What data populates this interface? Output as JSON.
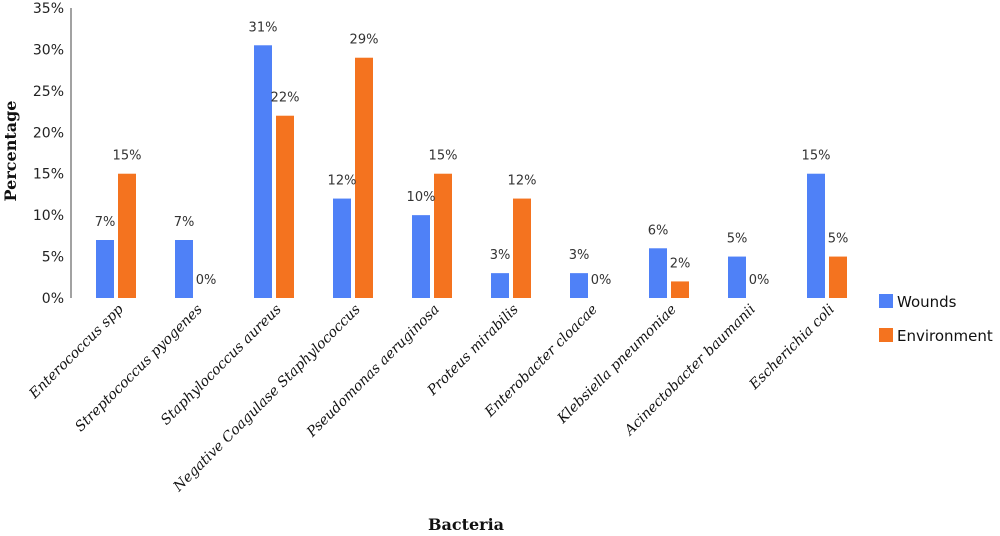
{
  "chart_data": {
    "type": "bar",
    "title": "",
    "xlabel": "Bacteria",
    "ylabel": "Percentage",
    "ylim": [
      0,
      35
    ],
    "yticks": [
      0,
      5,
      10,
      15,
      20,
      25,
      30,
      35
    ],
    "ytick_labels": [
      "0%",
      "5%",
      "10%",
      "15%",
      "20%",
      "25%",
      "30%",
      "35%"
    ],
    "grid": false,
    "legend_position": "right",
    "categories": [
      "Enterococcus spp",
      "Streptococcus pyogenes",
      "Staphylococcus aureus",
      "Negative Coagulase Staphylococcus",
      "Pseudomonas aeruginosa",
      "Proteus mirabilis",
      "Enterobacter cloacae",
      "Klebsiella pneumoniae",
      "Acinectobacter baumanii",
      "Escherichia coli"
    ],
    "series": [
      {
        "name": "Wounds",
        "color": "#4f81f7",
        "values": [
          7,
          7,
          30.5,
          12,
          10,
          3,
          3,
          6,
          5,
          15
        ],
        "labels": [
          "7%",
          "7%",
          "31%",
          "12%",
          "10%",
          "3%",
          "3%",
          "6%",
          "5%",
          "15%"
        ]
      },
      {
        "name": "Environment",
        "color": "#f4731f",
        "values": [
          15,
          0,
          22,
          29,
          15,
          12,
          0,
          2,
          0,
          5
        ],
        "labels": [
          "15%",
          "0%",
          "22%",
          "29%",
          "15%",
          "12%",
          "0%",
          "2%",
          "0%",
          "5%"
        ]
      }
    ]
  }
}
